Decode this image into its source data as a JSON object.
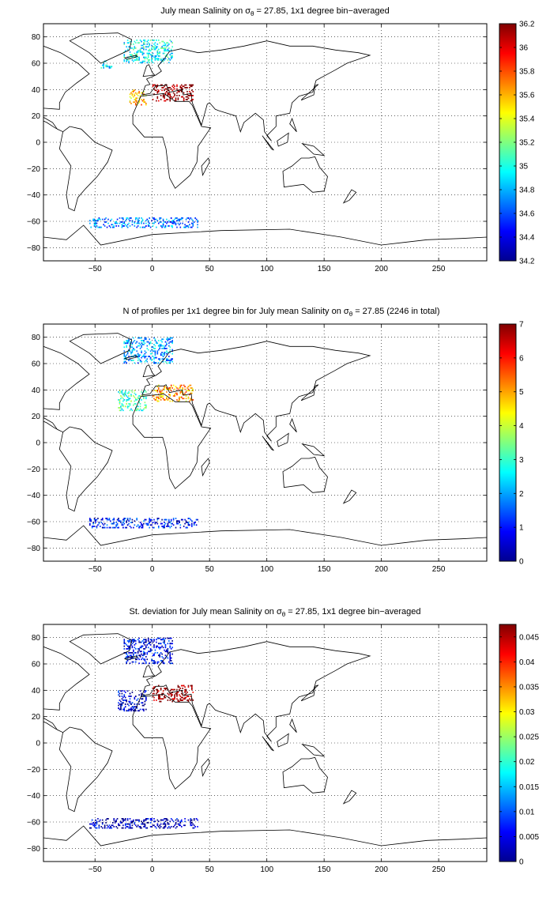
{
  "chart_data": [
    {
      "type": "heatmap",
      "title": {
        "pre": "July mean Salinity on ",
        "sym": "σ",
        "sub": "θ",
        "post": " = 27.85, 1x1 degree bin−averaged"
      },
      "xlabel": "",
      "ylabel": "",
      "xlim": [
        -95,
        292
      ],
      "ylim": [
        -90,
        90
      ],
      "xticks": [
        -50,
        0,
        50,
        100,
        150,
        200,
        250
      ],
      "yticks": [
        80,
        60,
        40,
        20,
        0,
        -20,
        -40,
        -60,
        -80
      ],
      "grid": true,
      "grid_style": "dotted",
      "colorbar": {
        "min": 34.2,
        "max": 36.2,
        "ticks": [
          "34.2",
          "34.4",
          "34.6",
          "34.8",
          "35",
          "35.2",
          "35.4",
          "35.6",
          "35.8",
          "36",
          "36.2"
        ],
        "colormap": "jet"
      },
      "clusters": [
        {
          "region": "Nordic Seas",
          "lon": [
            -25,
            18
          ],
          "lat": [
            60,
            78
          ],
          "value": 34.95
        },
        {
          "region": "Labrador Sea",
          "lon": [
            -45,
            -35
          ],
          "lat": [
            56,
            62
          ],
          "value": 34.9
        },
        {
          "region": "Gulf of Cadiz",
          "lon": [
            -20,
            -5
          ],
          "lat": [
            28,
            40
          ],
          "value": 35.6
        },
        {
          "region": "Mediterranean",
          "lon": [
            0,
            36
          ],
          "lat": [
            31,
            44
          ],
          "value": 36.2
        },
        {
          "region": "Southern Ocean",
          "lon": [
            -55,
            40
          ],
          "lat": [
            -65,
            -57
          ],
          "value": 34.7
        }
      ]
    },
    {
      "type": "heatmap",
      "title": {
        "pre": "N of profiles per 1x1 degree bin for July mean Salinity on ",
        "sym": "σ",
        "sub": "θ",
        "post": " = 27.85 (2246 in total)"
      },
      "xlabel": "",
      "ylabel": "",
      "xlim": [
        -95,
        292
      ],
      "ylim": [
        -90,
        90
      ],
      "xticks": [
        -50,
        0,
        50,
        100,
        150,
        200,
        250
      ],
      "yticks": [
        80,
        60,
        40,
        20,
        0,
        -20,
        -40,
        -60,
        -80
      ],
      "grid": true,
      "grid_style": "dotted",
      "total_profiles": 2246,
      "colorbar": {
        "min": 0,
        "max": 7,
        "ticks": [
          "0",
          "1",
          "2",
          "3",
          "4",
          "5",
          "6",
          "7"
        ],
        "colormap": "jet"
      },
      "clusters": [
        {
          "region": "Nordic Seas",
          "lon": [
            -25,
            18
          ],
          "lat": [
            60,
            80
          ],
          "value": 2
        },
        {
          "region": "Gulf of Cadiz",
          "lon": [
            -30,
            -5
          ],
          "lat": [
            24,
            40
          ],
          "value": 3
        },
        {
          "region": "Mediterranean",
          "lon": [
            0,
            36
          ],
          "lat": [
            31,
            44
          ],
          "value": 5
        },
        {
          "region": "Southern Ocean",
          "lon": [
            -55,
            40
          ],
          "lat": [
            -65,
            -57
          ],
          "value": 1
        }
      ]
    },
    {
      "type": "heatmap",
      "title": {
        "pre": "St. deviation for July mean Salinity on ",
        "sym": "σ",
        "sub": "θ",
        "post": " = 27.85, 1x1 degree bin−averaged"
      },
      "xlabel": "",
      "ylabel": "",
      "xlim": [
        -95,
        292
      ],
      "ylim": [
        -90,
        90
      ],
      "xticks": [
        -50,
        0,
        50,
        100,
        150,
        200,
        250
      ],
      "yticks": [
        80,
        60,
        40,
        20,
        0,
        -20,
        -40,
        -60,
        -80
      ],
      "grid": true,
      "grid_style": "dotted",
      "colorbar": {
        "min": 0,
        "max": 0.0475,
        "ticks": [
          "0",
          "0.005",
          "0.01",
          "0.015",
          "0.02",
          "0.025",
          "0.03",
          "0.035",
          "0.04",
          "0.045"
        ],
        "colormap": "jet"
      },
      "clusters": [
        {
          "region": "Nordic Seas",
          "lon": [
            -25,
            18
          ],
          "lat": [
            60,
            80
          ],
          "value": 0.005
        },
        {
          "region": "Gulf of Cadiz",
          "lon": [
            -30,
            -5
          ],
          "lat": [
            24,
            40
          ],
          "value": 0.004
        },
        {
          "region": "Mediterranean",
          "lon": [
            0,
            36
          ],
          "lat": [
            31,
            44
          ],
          "value": 0.047
        },
        {
          "region": "Southern Ocean",
          "lon": [
            -55,
            40
          ],
          "lat": [
            -65,
            -57
          ],
          "value": 0.003
        }
      ]
    }
  ]
}
